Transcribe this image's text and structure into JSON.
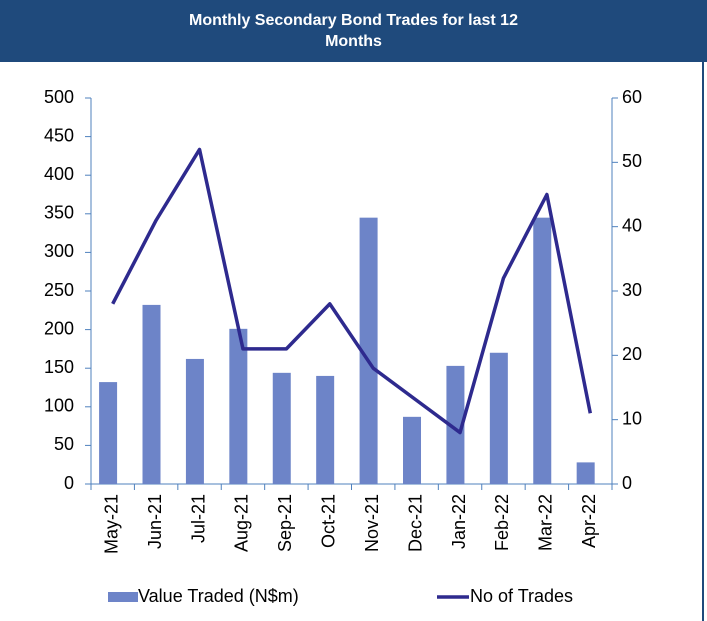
{
  "chart_data": {
    "type": "bar_line",
    "title": "Monthly Secondary Bond Trades for last 12 Months",
    "categories": [
      "May-21",
      "Jun-21",
      "Jul-21",
      "Aug-21",
      "Sep-21",
      "Oct-21",
      "Nov-21",
      "Dec-21",
      "Jan-22",
      "Feb-22",
      "Mar-22",
      "Apr-22"
    ],
    "series": [
      {
        "name": "Value Traded (N$m)",
        "type": "bar",
        "color": "#6d84c8",
        "values": [
          132,
          232,
          162,
          201,
          144,
          140,
          345,
          87,
          153,
          170,
          345,
          28
        ]
      },
      {
        "name": "No of Trades",
        "type": "line",
        "axis": "y2",
        "color": "#2e2a8e",
        "values": [
          28,
          41,
          52,
          21,
          21,
          28,
          18,
          13,
          8,
          32,
          45,
          11
        ]
      }
    ],
    "ylim": [
      0,
      500
    ],
    "yticks": [
      0,
      50,
      100,
      150,
      200,
      250,
      300,
      350,
      400,
      450,
      500
    ],
    "y2lim": [
      0,
      60
    ],
    "y2ticks": [
      0,
      10,
      20,
      30,
      40,
      50,
      60
    ],
    "legend": "bottom"
  }
}
